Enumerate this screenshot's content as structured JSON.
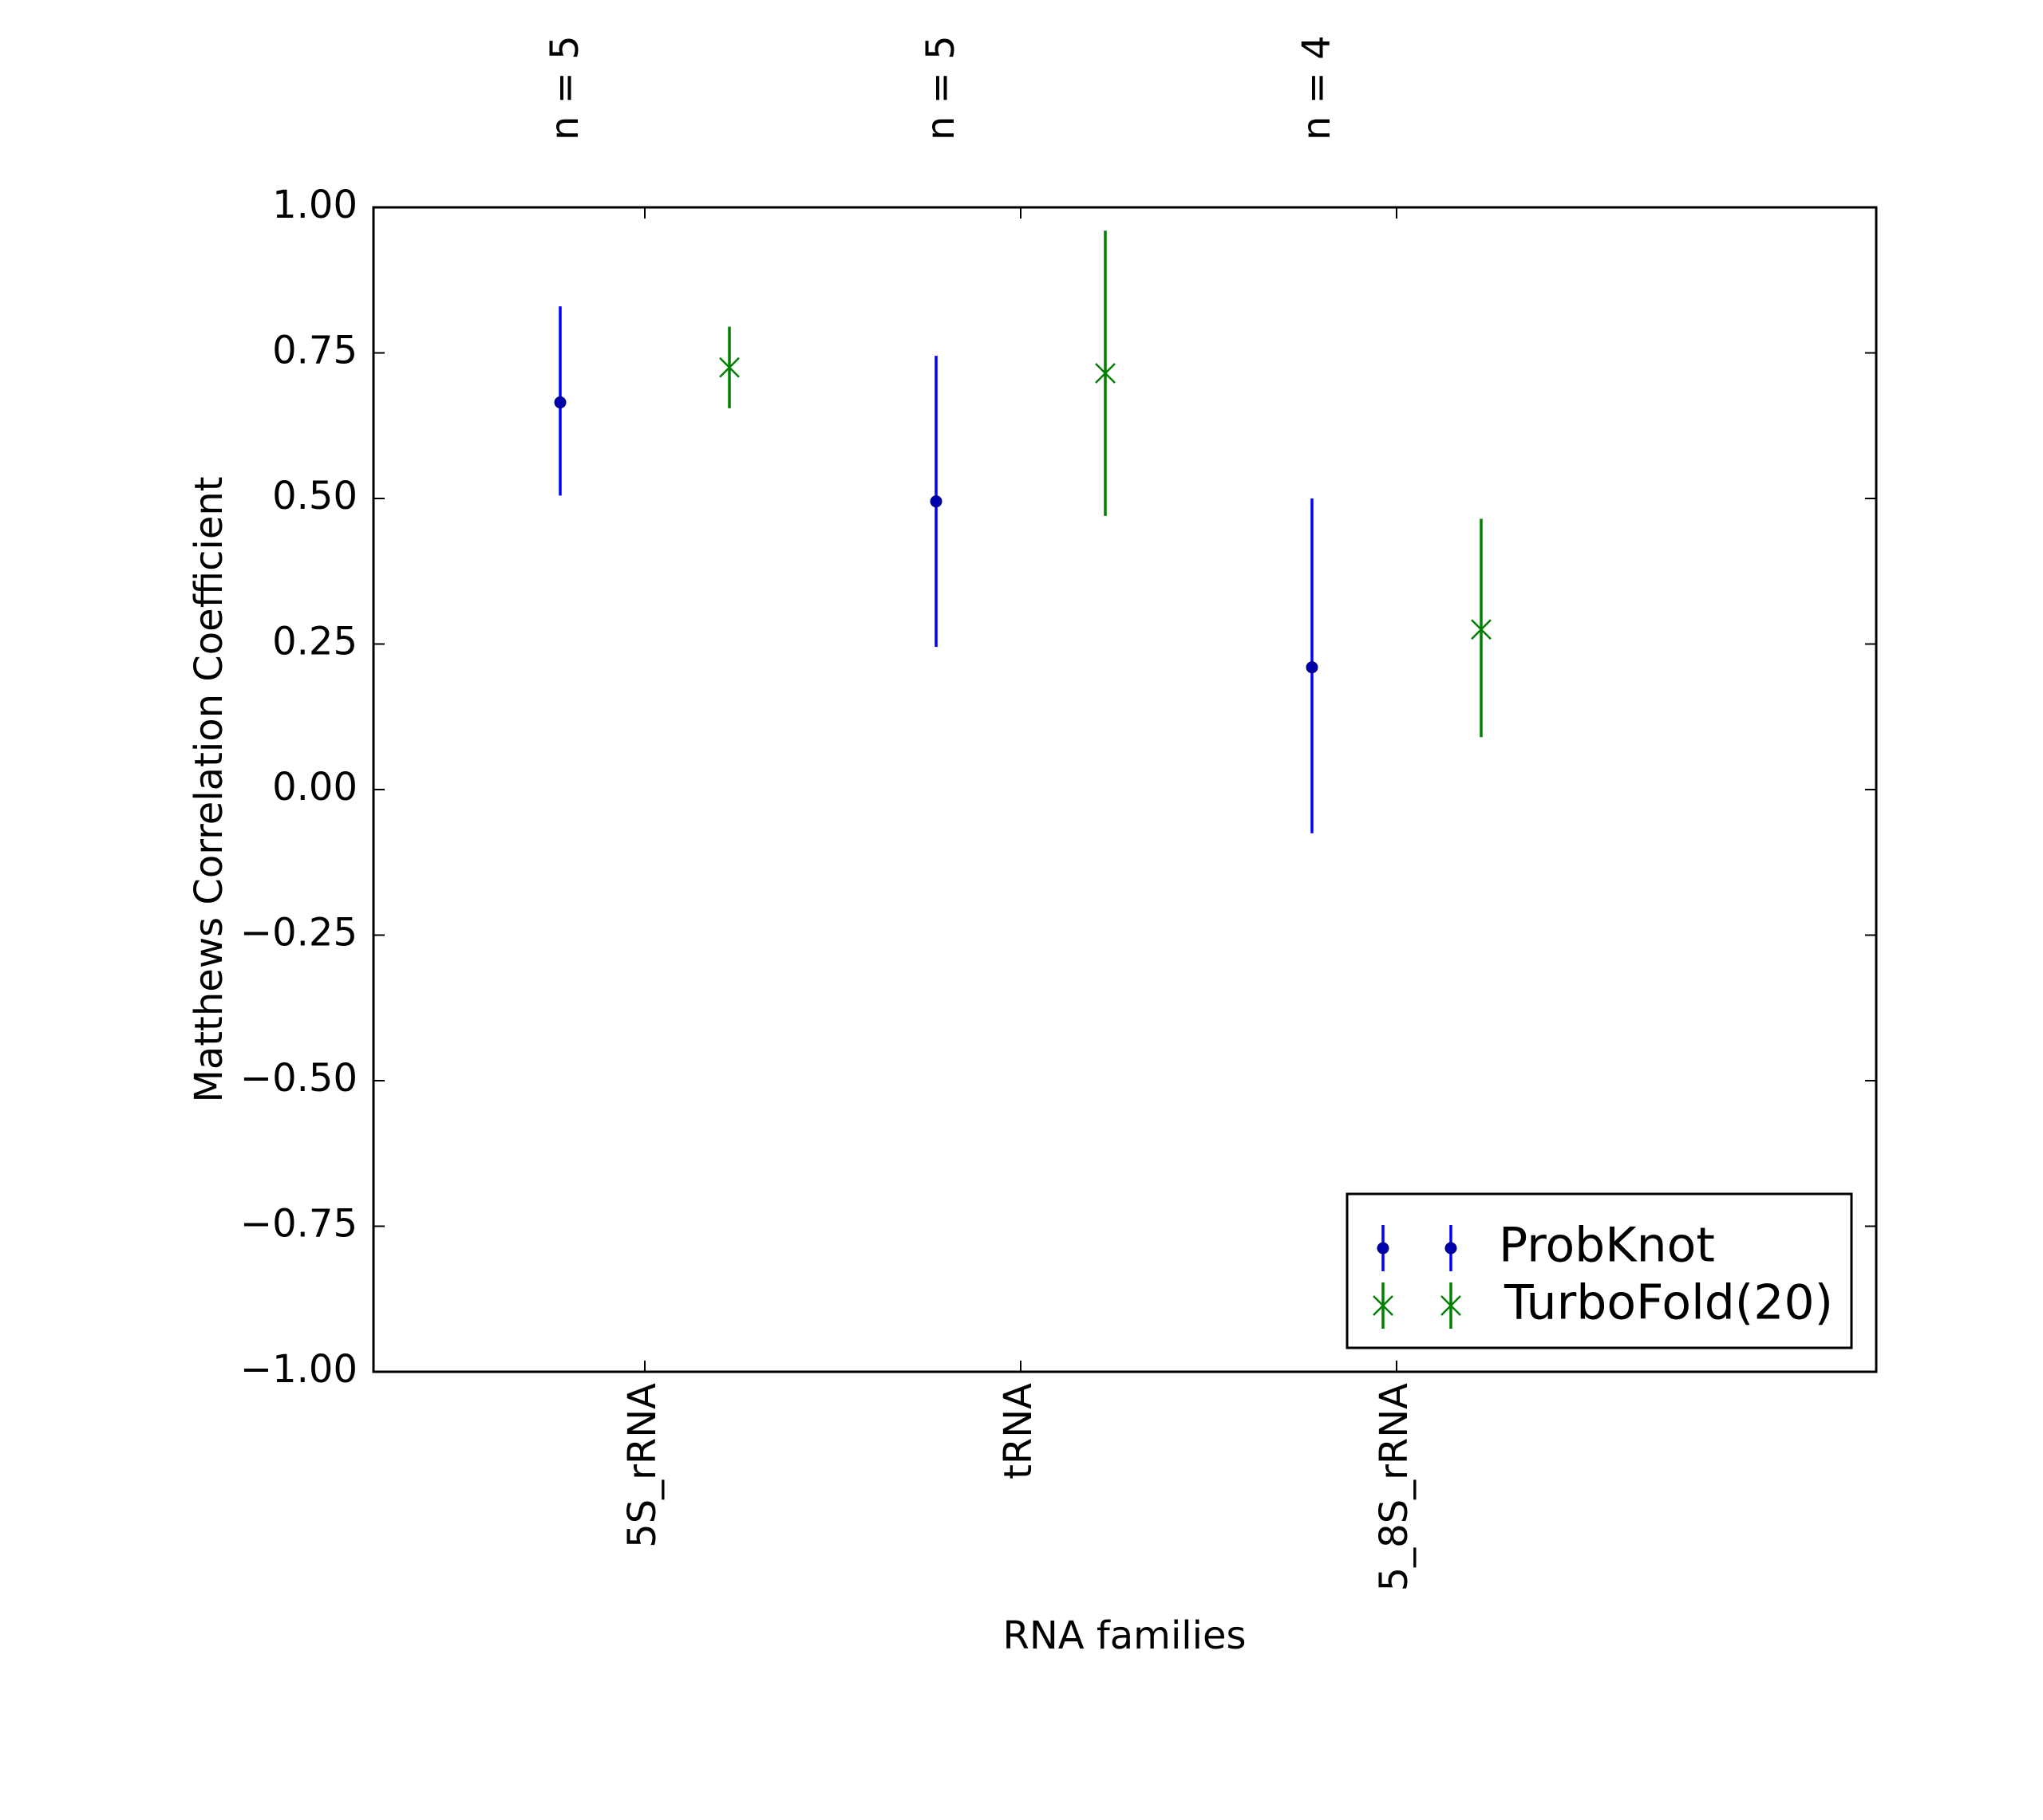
{
  "chart_data": {
    "type": "scatter",
    "xlabel": "RNA families",
    "ylabel": "Matthews Correlation Coefficient",
    "ylim": [
      -1.0,
      1.0
    ],
    "yticks": [
      "1.00",
      "0.75",
      "0.50",
      "0.25",
      "0.00",
      "−0.25",
      "−0.50",
      "−0.75",
      "−1.00"
    ],
    "ytick_values": [
      1.0,
      0.75,
      0.5,
      0.25,
      0.0,
      -0.25,
      -0.5,
      -0.75,
      -1.0
    ],
    "categories": [
      "5S_rRNA",
      "tRNA",
      "5_8S_rRNA"
    ],
    "top_labels": [
      "n = 5",
      "n = 5",
      "n = 4"
    ],
    "series": [
      {
        "name": "ProbKnot",
        "color": "#0000ff",
        "marker": "dot",
        "values": [
          0.665,
          0.495,
          0.21
        ],
        "err_low": [
          0.505,
          0.245,
          -0.075
        ],
        "err_high": [
          0.83,
          0.745,
          0.5
        ]
      },
      {
        "name": "TurboFold(20)",
        "color": "#008000",
        "marker": "x",
        "values": [
          0.725,
          0.715,
          0.275
        ],
        "err_low": [
          0.655,
          0.47,
          0.09
        ],
        "err_high": [
          0.795,
          0.96,
          0.465
        ]
      }
    ],
    "grid": false,
    "legend": "lower-right"
  }
}
